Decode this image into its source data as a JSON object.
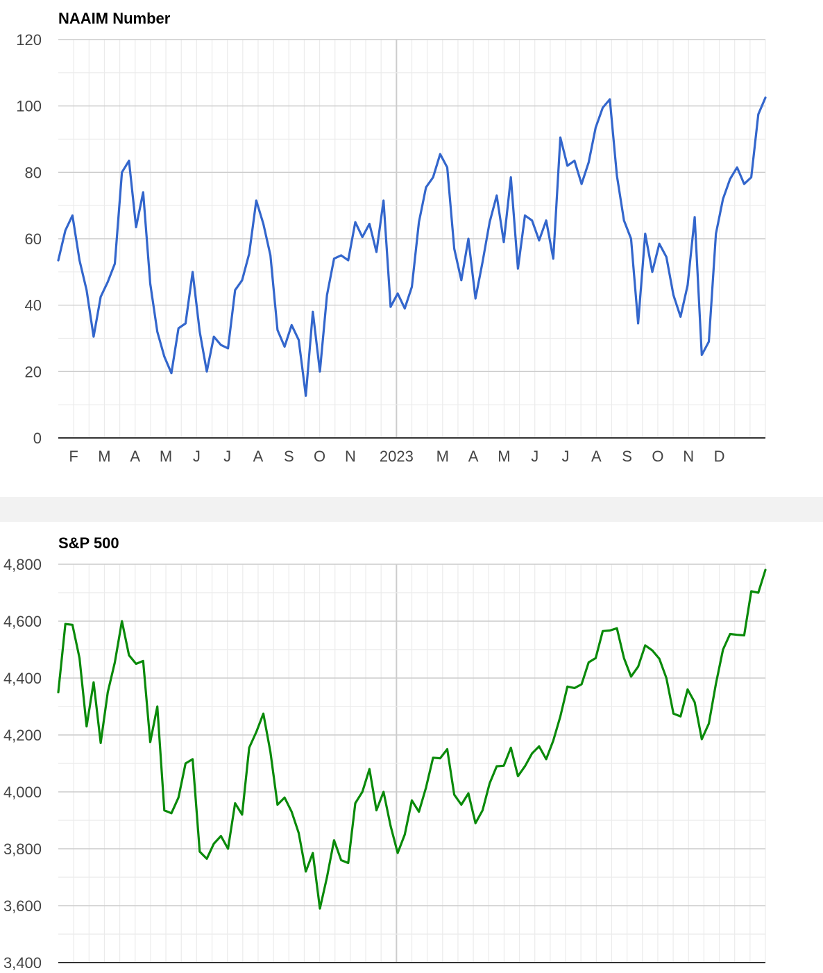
{
  "colors": {
    "naaim_line": "#3366cc",
    "spx_line": "#0a8a0a",
    "grid_major": "#cccccc",
    "grid_minor": "#ebebeb",
    "axis": "#333333"
  },
  "chart_data": [
    {
      "type": "line",
      "title": "NAAIM Number",
      "xlabel": "",
      "ylabel": "",
      "ylim": [
        0,
        120
      ],
      "yticks": [
        0,
        20,
        40,
        60,
        80,
        100,
        120
      ],
      "grid": true,
      "x_tick_labels": [
        "F",
        "M",
        "A",
        "M",
        "J",
        "J",
        "A",
        "S",
        "O",
        "N",
        "2023",
        "M",
        "A",
        "M",
        "J",
        "J",
        "A",
        "S",
        "O",
        "N",
        "D"
      ],
      "x_tick_positions": [
        1.5,
        2.5,
        3.5,
        4.5,
        5.5,
        6.5,
        7.5,
        8.5,
        9.5,
        10.5,
        12.0,
        13.5,
        14.5,
        15.5,
        16.5,
        17.5,
        18.5,
        19.5,
        20.5,
        21.5,
        22.5
      ],
      "x_domain": [
        1.0,
        24.0
      ],
      "x_minor_grid_step": 0.5,
      "x_major_grid": [
        12.0
      ],
      "series": [
        {
          "x": [
            1.0,
            1.23,
            1.46,
            1.69,
            1.92,
            2.15,
            2.38,
            2.61,
            2.84,
            3.07,
            3.3,
            3.53,
            3.76,
            3.99,
            4.22,
            4.45,
            4.68,
            4.91,
            5.14,
            5.37,
            5.6,
            5.83,
            6.06,
            6.29,
            6.52,
            6.75,
            6.98,
            7.21,
            7.44,
            7.67,
            7.9,
            8.13,
            8.36,
            8.59,
            8.82,
            9.05,
            9.28,
            9.51,
            9.74,
            9.97,
            10.2,
            10.43,
            10.66,
            10.89,
            11.12,
            11.35,
            11.58,
            11.81,
            12.04,
            12.27,
            12.5,
            12.73,
            12.96,
            13.19,
            13.42,
            13.65,
            13.88,
            14.11,
            14.34,
            14.57,
            14.8,
            15.03,
            15.26,
            15.49,
            15.72,
            15.95,
            16.18,
            16.41,
            16.64,
            16.87,
            17.1,
            17.33,
            17.56,
            17.79,
            18.02,
            18.25,
            18.48,
            18.71,
            18.94,
            19.17,
            19.4,
            19.63,
            19.86,
            20.09,
            20.32,
            20.55,
            20.78,
            21.01,
            21.24,
            21.47,
            21.7,
            21.93,
            22.16,
            22.39,
            22.62,
            22.85,
            23.08,
            23.31,
            23.54,
            23.77,
            24.0
          ],
          "values": [
            53.5,
            62.5,
            67,
            53.5,
            44.5,
            30.5,
            42.5,
            47,
            52.5,
            80,
            83.5,
            63.5,
            74,
            46.5,
            32,
            24.5,
            19.5,
            33,
            34.5,
            50,
            32,
            20,
            30.5,
            28,
            27,
            44.5,
            47.5,
            55.5,
            71.5,
            64.5,
            55,
            32.5,
            27.5,
            34,
            29.5,
            12.7,
            38,
            20,
            43,
            54,
            55,
            53.5,
            65,
            60.5,
            64.5,
            56,
            71.5,
            39.5,
            43.5,
            39,
            45.5,
            65,
            75.5,
            78.5,
            85.5,
            81.5,
            57,
            47.5,
            60,
            42,
            53,
            65,
            73,
            59,
            78.5,
            51,
            67,
            65.5,
            59.5,
            65.5,
            54,
            90.5,
            82,
            83.5,
            76.5,
            83,
            93.5,
            99.5,
            102,
            79,
            65.5,
            60,
            34.5,
            61.5,
            50,
            58.5,
            54.5,
            43,
            36.5,
            46,
            66.5,
            25,
            29,
            61.5,
            72,
            78,
            81.5,
            76.5,
            78.5,
            97.5,
            102.5
          ]
        }
      ]
    },
    {
      "type": "line",
      "title": "S&P 500",
      "xlabel": "",
      "ylabel": "",
      "ylim": [
        3400,
        4800
      ],
      "yticks": [
        3400,
        3600,
        3800,
        4000,
        4200,
        4400,
        4600,
        4800
      ],
      "ytick_labels": [
        "3,400",
        "3,600",
        "3,800",
        "4,000",
        "4,200",
        "4,400",
        "4,600",
        "4,800"
      ],
      "grid": true,
      "x_domain": [
        1.0,
        24.0
      ],
      "x_minor_grid_step": 0.5,
      "x_major_grid": [
        12.0
      ],
      "series": [
        {
          "x": [
            1.0,
            1.23,
            1.46,
            1.69,
            1.92,
            2.15,
            2.38,
            2.61,
            2.84,
            3.07,
            3.3,
            3.53,
            3.76,
            3.99,
            4.22,
            4.45,
            4.68,
            4.91,
            5.14,
            5.37,
            5.6,
            5.83,
            6.06,
            6.29,
            6.52,
            6.75,
            6.98,
            7.21,
            7.44,
            7.67,
            7.9,
            8.13,
            8.36,
            8.59,
            8.82,
            9.05,
            9.28,
            9.51,
            9.74,
            9.97,
            10.2,
            10.43,
            10.66,
            10.89,
            11.12,
            11.35,
            11.58,
            11.81,
            12.04,
            12.27,
            12.5,
            12.73,
            12.96,
            13.19,
            13.42,
            13.65,
            13.88,
            14.11,
            14.34,
            14.57,
            14.8,
            15.03,
            15.26,
            15.49,
            15.72,
            15.95,
            16.18,
            16.41,
            16.64,
            16.87,
            17.1,
            17.33,
            17.56,
            17.79,
            18.02,
            18.25,
            18.48,
            18.71,
            18.94,
            19.17,
            19.4,
            19.63,
            19.86,
            20.09,
            20.32,
            20.55,
            20.78,
            21.01,
            21.24,
            21.47,
            21.7,
            21.93,
            22.16,
            22.39,
            22.62,
            22.85,
            23.08,
            23.31,
            23.54,
            23.77,
            24.0
          ],
          "values": [
            4350,
            4590,
            4587,
            4470,
            4230,
            4385,
            4172,
            4350,
            4455,
            4600,
            4480,
            4450,
            4460,
            4175,
            4300,
            3935,
            3925,
            3980,
            4100,
            4115,
            3790,
            3765,
            3818,
            3845,
            3800,
            3960,
            3920,
            4155,
            4210,
            4275,
            4140,
            3955,
            3980,
            3930,
            3855,
            3720,
            3785,
            3590,
            3700,
            3830,
            3760,
            3750,
            3960,
            4000,
            4080,
            3935,
            4000,
            3880,
            3785,
            3850,
            3970,
            3930,
            4015,
            4120,
            4118,
            4150,
            3990,
            3955,
            3995,
            3890,
            3935,
            4030,
            4090,
            4092,
            4155,
            4055,
            4090,
            4135,
            4160,
            4115,
            4180,
            4265,
            4370,
            4365,
            4378,
            4455,
            4470,
            4565,
            4567,
            4575,
            4470,
            4405,
            4440,
            4515,
            4497,
            4468,
            4400,
            4275,
            4265,
            4360,
            4315,
            4185,
            4240,
            4380,
            4500,
            4555,
            4552,
            4550,
            4705,
            4700,
            4780
          ]
        }
      ]
    }
  ]
}
